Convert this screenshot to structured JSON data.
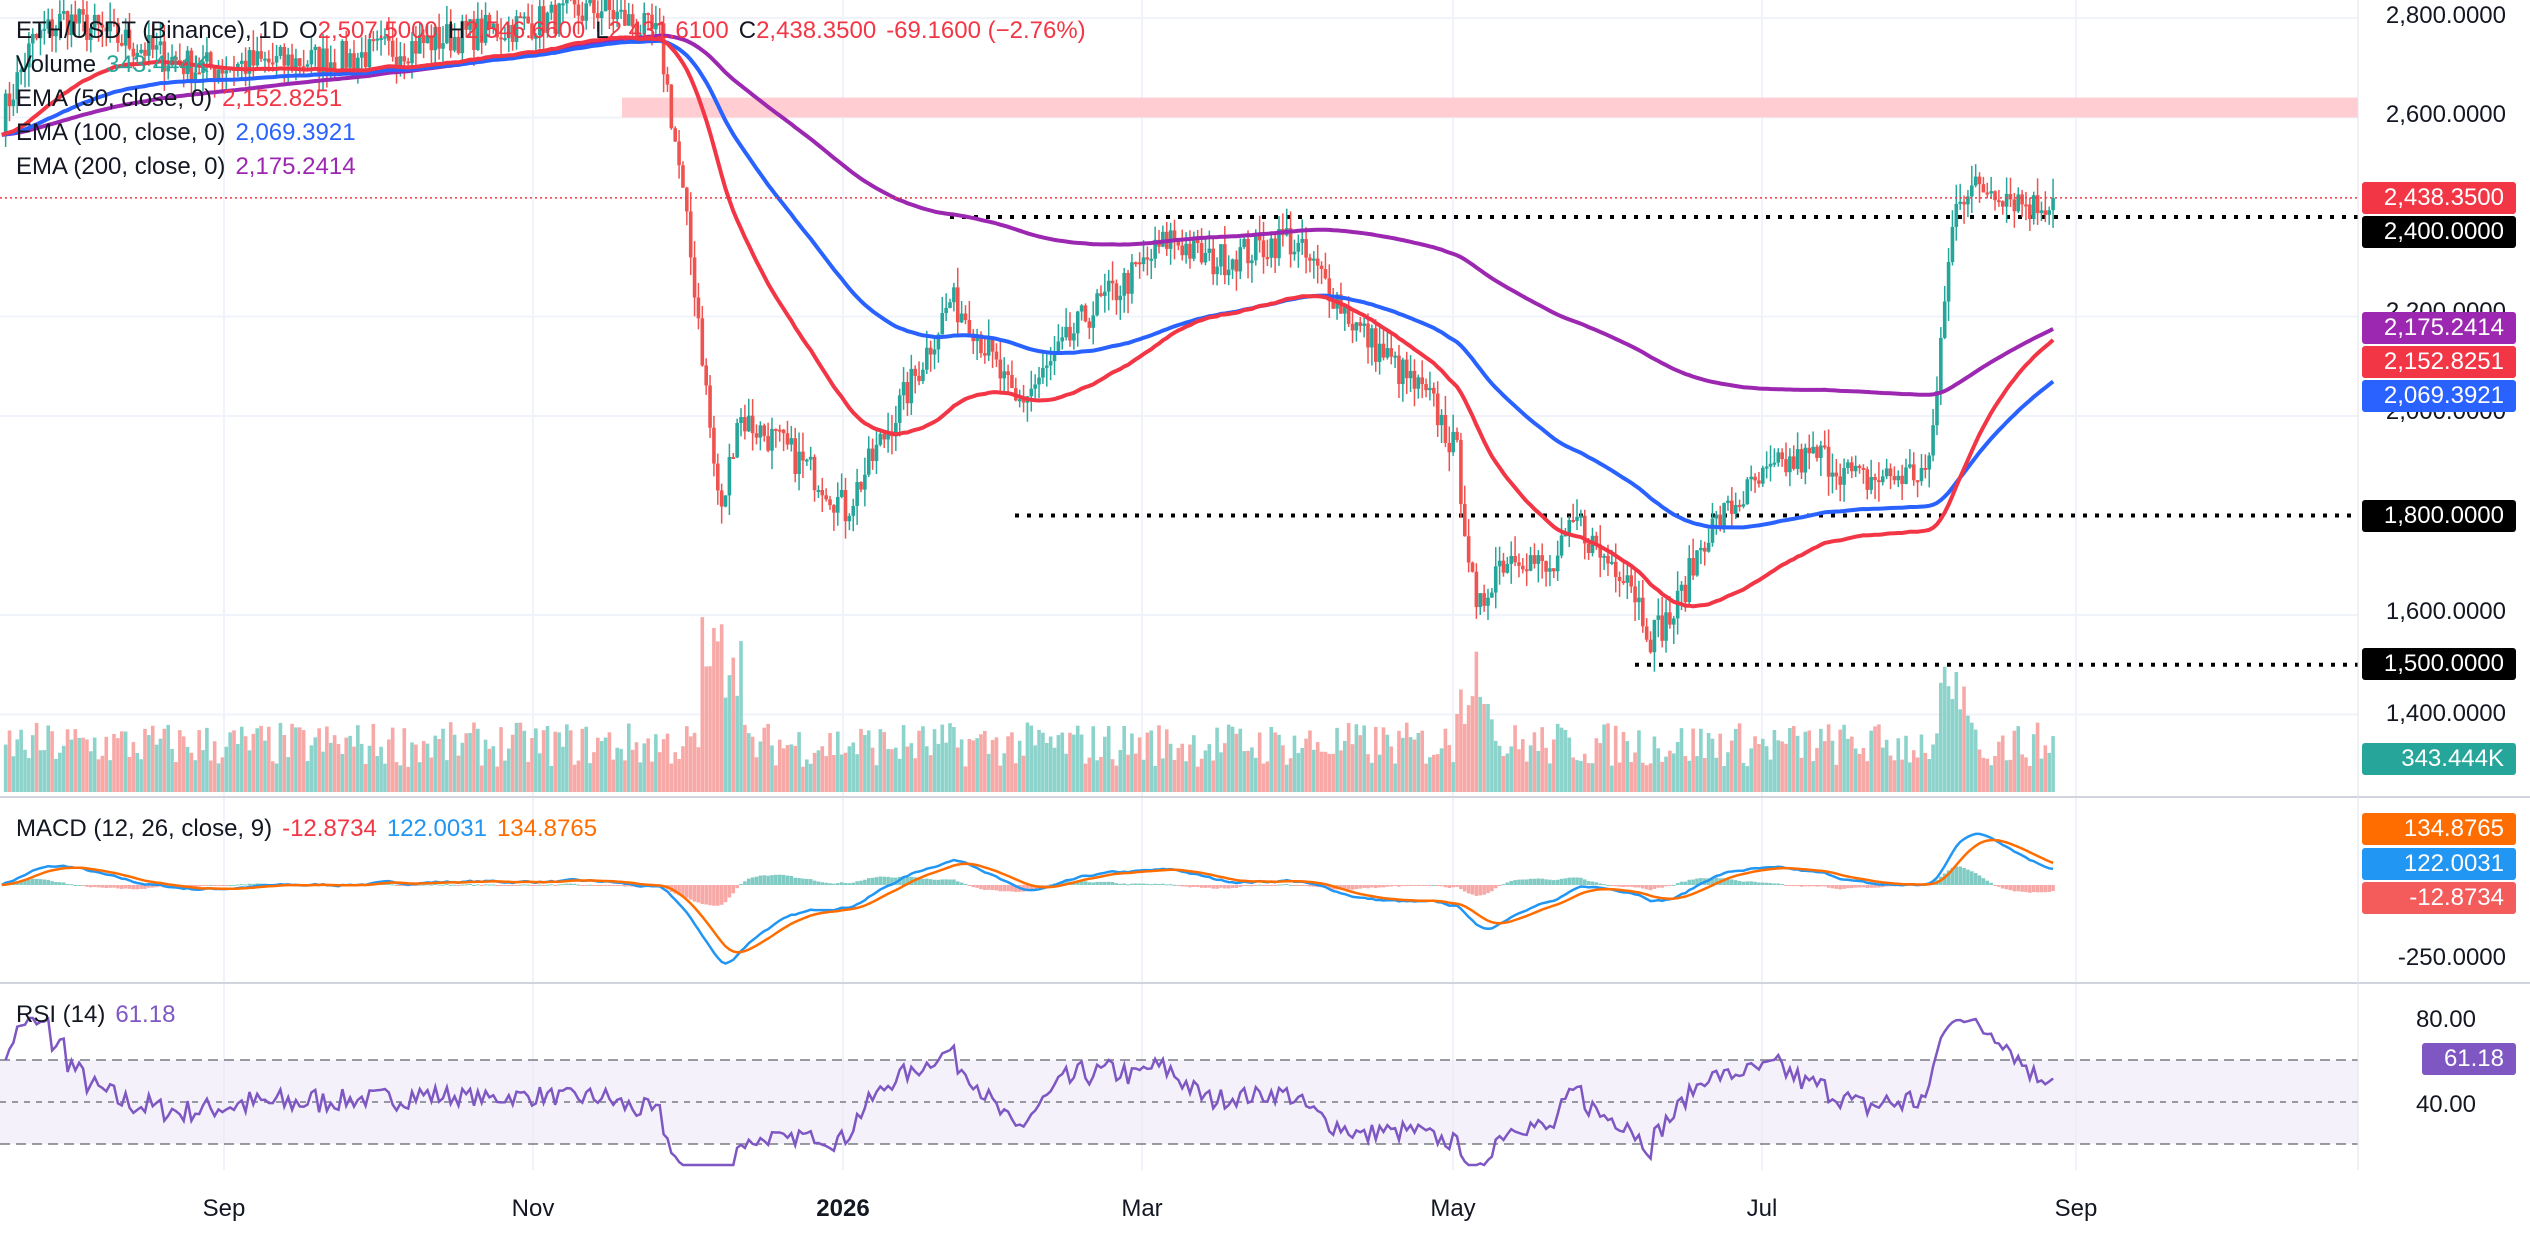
{
  "legend": {
    "symbol": "ETH/USDT (Binance), 1D",
    "open_label": "O",
    "open": "2,507.5000",
    "high_label": "H",
    "high": "2,546.6600",
    "low_label": "L",
    "low": "2,431.6100",
    "close_label": "C",
    "close": "2,438.3500",
    "change": "-69.1600 (−2.76%)",
    "volume_label": "Volume",
    "volume": "343.444K",
    "ema50_label": "EMA (50, close, 0)",
    "ema50": "2,152.8251",
    "ema100_label": "EMA (100, close, 0)",
    "ema100": "2,069.3921",
    "ema200_label": "EMA (200, close, 0)",
    "ema200": "2,175.2414",
    "macd_label": "MACD (12, 26, close, 9)",
    "macd_hist": "-12.8734",
    "macd_line": "122.0031",
    "macd_signal": "134.8765",
    "rsi_label": "RSI (14)",
    "rsi": "61.18"
  },
  "price_axis": {
    "ticks": [
      "2,800.0000",
      "2,600.0000",
      "2,200.0000",
      "2,000.0000",
      "1,600.0000",
      "1,400.0000"
    ],
    "tick_values": [
      2800,
      2600,
      2200,
      2000,
      1600,
      1400
    ]
  },
  "badges": {
    "last_price": "2,438.3500",
    "level_2400": "2,400.0000",
    "ema200": "2,175.2414",
    "ema50": "2,152.8251",
    "ema100": "2,069.3921",
    "level_1800": "1,800.0000",
    "level_1500": "1,500.0000",
    "volume": "343.444K",
    "macd_signal": "134.8765",
    "macd_line": "122.0031",
    "macd_hist": "-12.8734",
    "rsi": "61.18"
  },
  "macd_axis": {
    "tick": "-250.0000"
  },
  "rsi_axis": {
    "ticks": [
      "80.00",
      "40.00"
    ]
  },
  "time_axis": [
    "Sep",
    "Nov",
    "2026",
    "Mar",
    "May",
    "Jul",
    "Sep"
  ],
  "colors": {
    "up": "#26a69a",
    "down": "#ef5350",
    "ema50": "#f23645",
    "ema100": "#2962ff",
    "ema200": "#9c27b0",
    "macd": "#2196f3",
    "signal": "#ff6d00",
    "rsi": "#7e57c2",
    "resistance_zone": "#ffcdd2",
    "level": "#000000"
  },
  "chart_data": {
    "type": "candlestick",
    "symbol": "ETH/USDT",
    "timeframe": "1D",
    "x_range": [
      "2025-08",
      "2026-09"
    ],
    "ylim": [
      1300,
      2840
    ],
    "resistance_zone": [
      2600,
      2640
    ],
    "horizontal_levels": [
      2400,
      1800,
      1500
    ],
    "price_path": [
      [
        0,
        2600
      ],
      [
        8,
        2750
      ],
      [
        16,
        2800
      ],
      [
        50,
        2700
      ],
      [
        90,
        2720
      ],
      [
        115,
        2760
      ],
      [
        130,
        2780
      ],
      [
        155,
        2820
      ],
      [
        170,
        2760
      ],
      [
        175,
        2500
      ],
      [
        180,
        2200
      ],
      [
        184,
        1900
      ],
      [
        186,
        1800
      ],
      [
        190,
        2000
      ],
      [
        200,
        1950
      ],
      [
        212,
        1870
      ],
      [
        218,
        1810
      ],
      [
        228,
        1960
      ],
      [
        236,
        2080
      ],
      [
        245,
        2230
      ],
      [
        250,
        2200
      ],
      [
        262,
        2020
      ],
      [
        270,
        2090
      ],
      [
        280,
        2200
      ],
      [
        292,
        2280
      ],
      [
        302,
        2360
      ],
      [
        312,
        2310
      ],
      [
        322,
        2330
      ],
      [
        332,
        2360
      ],
      [
        342,
        2270
      ],
      [
        350,
        2180
      ],
      [
        360,
        2100
      ],
      [
        370,
        2020
      ],
      [
        376,
        1920
      ],
      [
        381,
        1590
      ],
      [
        386,
        1700
      ],
      [
        392,
        1730
      ],
      [
        400,
        1680
      ],
      [
        407,
        1790
      ],
      [
        413,
        1720
      ],
      [
        420,
        1690
      ],
      [
        426,
        1560
      ],
      [
        432,
        1600
      ],
      [
        440,
        1760
      ],
      [
        450,
        1840
      ],
      [
        460,
        1900
      ],
      [
        470,
        1920
      ],
      [
        480,
        1870
      ],
      [
        490,
        1880
      ],
      [
        498,
        1890
      ],
      [
        501,
        2150
      ],
      [
        505,
        2450
      ],
      [
        515,
        2460
      ],
      [
        525,
        2420
      ],
      [
        530,
        2438
      ]
    ],
    "ema50_last": 2152.8251,
    "ema100_last": 2069.3921,
    "ema200_last": 2175.2414,
    "volume_last": 343.444,
    "macd": {
      "hist": -12.8734,
      "line": 122.0031,
      "signal": 134.8765,
      "ylim": [
        -300,
        200
      ]
    },
    "rsi": {
      "value": 61.18,
      "bands": [
        70,
        30
      ],
      "ylim": [
        20,
        90
      ]
    }
  }
}
